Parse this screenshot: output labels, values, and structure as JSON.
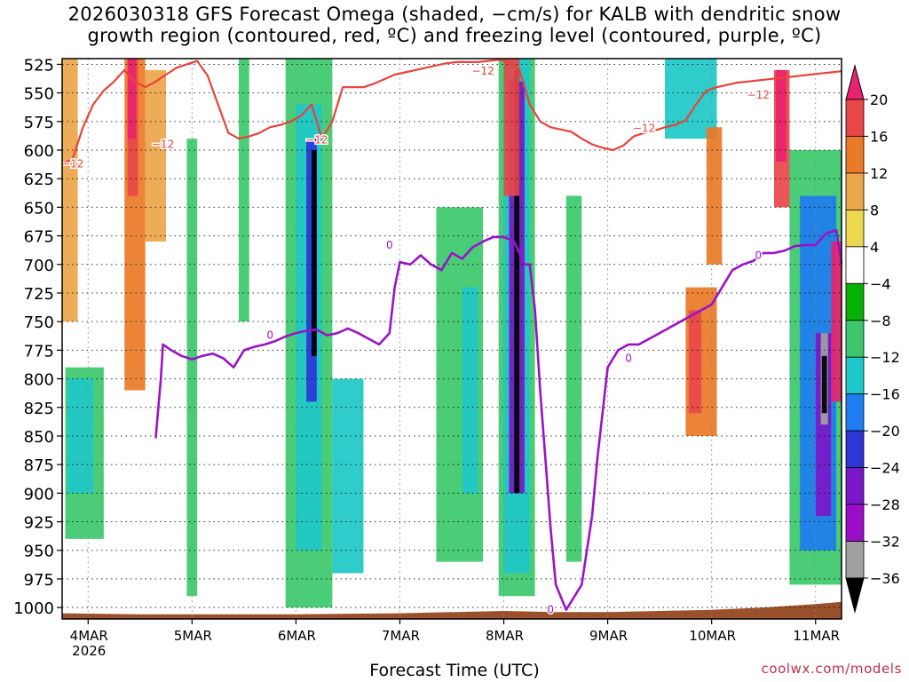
{
  "title": {
    "line1": "2026030318 GFS Forecast Omega (shaded, −cm/s) for KALB with dendritic snow",
    "line2": "growth region (contoured, red, ºC) and freezing level (contoured, purple, ºC)"
  },
  "xlabel": "Forecast Time (UTC)",
  "credit": "coolwx.com/models",
  "chart_data": {
    "type": "heatmap",
    "title": "2026030318 GFS Forecast Omega (shaded, −cm/s) for KALB with dendritic snow growth region (contoured, red, ºC) and freezing level (contoured, purple, ºC)",
    "xlabel": "Forecast Time (UTC)",
    "ylabel": "",
    "x_ticks": [
      {
        "x": 0.0,
        "label": "4MAR",
        "sub": "2026"
      },
      {
        "x": 1.0,
        "label": "5MAR"
      },
      {
        "x": 2.0,
        "label": "6MAR"
      },
      {
        "x": 3.0,
        "label": "7MAR"
      },
      {
        "x": 4.0,
        "label": "8MAR"
      },
      {
        "x": 5.0,
        "label": "9MAR"
      },
      {
        "x": 6.0,
        "label": "10MAR"
      },
      {
        "x": 7.0,
        "label": "11MAR"
      }
    ],
    "xlim": [
      -0.25,
      7.25
    ],
    "y_levels": [
      525,
      550,
      575,
      600,
      625,
      650,
      675,
      700,
      725,
      750,
      775,
      800,
      825,
      850,
      875,
      900,
      925,
      950,
      975,
      1000
    ],
    "ylim": [
      1010,
      520
    ],
    "grid": true,
    "colorbar": {
      "labels": [
        "20",
        "16",
        "12",
        "8",
        "4",
        "−4",
        "−8",
        "−12",
        "−16",
        "−20",
        "−24",
        "−28",
        "−32",
        "−36"
      ],
      "colors": [
        "#e8246e",
        "#e8474a",
        "#ea7a26",
        "#eba64a",
        "#ecd84e",
        "#ffffff",
        "#06b106",
        "#3cc86a",
        "#1ec8c8",
        "#1e7df0",
        "#2e36d6",
        "#7a18c8",
        "#9b0ec8",
        "#a0a0a0",
        "#000000"
      ]
    },
    "omega_bands": [
      {
        "x0": 0.35,
        "x1": 0.55,
        "p0": 520,
        "p1": 810,
        "value": 12
      },
      {
        "x0": 0.38,
        "x1": 0.48,
        "p0": 520,
        "p1": 640,
        "value": 16
      },
      {
        "x0": 0.38,
        "x1": 0.46,
        "p0": 520,
        "p1": 590,
        "value": 20
      },
      {
        "x0": -0.25,
        "x1": -0.1,
        "p0": 520,
        "p1": 750,
        "value": 8
      },
      {
        "x0": 0.55,
        "x1": 0.75,
        "p0": 530,
        "p1": 680,
        "value": 8
      },
      {
        "x0": -0.22,
        "x1": 0.15,
        "p0": 790,
        "p1": 940,
        "value": -8
      },
      {
        "x0": -0.2,
        "x1": 0.05,
        "p0": 800,
        "p1": 900,
        "value": -12
      },
      {
        "x0": 0.95,
        "x1": 1.05,
        "p0": 590,
        "p1": 990,
        "value": -8
      },
      {
        "x0": 1.45,
        "x1": 1.55,
        "p0": 520,
        "p1": 750,
        "value": -8
      },
      {
        "x0": 1.9,
        "x1": 2.35,
        "p0": 520,
        "p1": 1000,
        "value": -8
      },
      {
        "x0": 2.0,
        "x1": 2.25,
        "p0": 560,
        "p1": 950,
        "value": -12
      },
      {
        "x0": 2.1,
        "x1": 2.2,
        "p0": 590,
        "p1": 820,
        "value": -20
      },
      {
        "x0": 2.15,
        "x1": 2.2,
        "p0": 600,
        "p1": 780,
        "value": -36
      },
      {
        "x0": 2.35,
        "x1": 2.65,
        "p0": 800,
        "p1": 970,
        "value": -12
      },
      {
        "x0": 3.35,
        "x1": 3.8,
        "p0": 650,
        "p1": 960,
        "value": -8
      },
      {
        "x0": 3.6,
        "x1": 3.75,
        "p0": 720,
        "p1": 900,
        "value": -12
      },
      {
        "x0": 3.95,
        "x1": 4.3,
        "p0": 520,
        "p1": 990,
        "value": -8
      },
      {
        "x0": 4.0,
        "x1": 4.25,
        "p0": 520,
        "p1": 970,
        "value": -12
      },
      {
        "x0": 4.05,
        "x1": 4.2,
        "p0": 540,
        "p1": 900,
        "value": -24
      },
      {
        "x0": 4.1,
        "x1": 4.15,
        "p0": 530,
        "p1": 900,
        "value": -36
      },
      {
        "x0": 4.0,
        "x1": 4.15,
        "p0": 520,
        "p1": 640,
        "value": 16
      },
      {
        "x0": 4.6,
        "x1": 4.75,
        "p0": 640,
        "p1": 960,
        "value": -8
      },
      {
        "x0": 5.55,
        "x1": 6.05,
        "p0": 520,
        "p1": 590,
        "value": -12
      },
      {
        "x0": 5.75,
        "x1": 6.05,
        "p0": 720,
        "p1": 850,
        "value": 12
      },
      {
        "x0": 5.78,
        "x1": 5.9,
        "p0": 740,
        "p1": 830,
        "value": 16
      },
      {
        "x0": 5.95,
        "x1": 6.1,
        "p0": 580,
        "p1": 700,
        "value": 12
      },
      {
        "x0": 6.6,
        "x1": 6.75,
        "p0": 530,
        "p1": 650,
        "value": 16
      },
      {
        "x0": 6.62,
        "x1": 6.72,
        "p0": 530,
        "p1": 610,
        "value": 20
      },
      {
        "x0": 6.75,
        "x1": 7.25,
        "p0": 600,
        "p1": 980,
        "value": -8
      },
      {
        "x0": 6.85,
        "x1": 7.2,
        "p0": 640,
        "p1": 950,
        "value": -16
      },
      {
        "x0": 7.0,
        "x1": 7.15,
        "p0": 760,
        "p1": 920,
        "value": -24
      },
      {
        "x0": 7.05,
        "x1": 7.12,
        "p0": 760,
        "p1": 840,
        "value": -32
      },
      {
        "x0": 7.06,
        "x1": 7.11,
        "p0": 780,
        "p1": 830,
        "value": -36
      },
      {
        "x0": 7.15,
        "x1": 7.25,
        "p0": 680,
        "p1": 820,
        "value": 20
      }
    ],
    "terrain_pressure": [
      [
        -0.25,
        1005
      ],
      [
        0.5,
        1006
      ],
      [
        1.0,
        1006
      ],
      [
        2.0,
        1006
      ],
      [
        3.0,
        1005
      ],
      [
        4.0,
        1003
      ],
      [
        4.5,
        1004
      ],
      [
        5.0,
        1004
      ],
      [
        5.5,
        1003
      ],
      [
        6.0,
        1002
      ],
      [
        6.5,
        1000
      ],
      [
        7.0,
        997
      ],
      [
        7.25,
        995
      ]
    ],
    "minus12_contour": [
      [
        -0.25,
        612
      ],
      [
        -0.15,
        608
      ],
      [
        -0.05,
        580
      ],
      [
        0.05,
        560
      ],
      [
        0.15,
        548
      ],
      [
        0.25,
        540
      ],
      [
        0.35,
        530
      ],
      [
        0.45,
        540
      ],
      [
        0.55,
        545
      ],
      [
        0.65,
        540
      ],
      [
        0.75,
        534
      ],
      [
        0.85,
        528
      ],
      [
        0.95,
        525
      ],
      [
        1.05,
        522
      ],
      [
        1.15,
        535
      ],
      [
        1.25,
        560
      ],
      [
        1.35,
        585
      ],
      [
        1.45,
        590
      ],
      [
        1.55,
        588
      ],
      [
        1.65,
        585
      ],
      [
        1.75,
        580
      ],
      [
        1.85,
        578
      ],
      [
        1.95,
        575
      ],
      [
        2.05,
        570
      ],
      [
        2.15,
        560
      ],
      [
        2.25,
        590
      ],
      [
        2.35,
        575
      ],
      [
        2.45,
        545
      ],
      [
        2.55,
        545
      ],
      [
        2.65,
        545
      ],
      [
        2.75,
        542
      ],
      [
        2.85,
        538
      ],
      [
        2.95,
        534
      ],
      [
        3.05,
        532
      ],
      [
        3.15,
        530
      ],
      [
        3.25,
        528
      ],
      [
        3.35,
        526
      ],
      [
        3.45,
        524
      ],
      [
        3.55,
        523
      ],
      [
        3.65,
        523
      ],
      [
        3.75,
        523
      ],
      [
        3.85,
        522
      ],
      [
        3.95,
        521
      ],
      [
        4.05,
        523
      ],
      [
        4.15,
        530
      ],
      [
        4.25,
        560
      ],
      [
        4.35,
        575
      ],
      [
        4.45,
        580
      ],
      [
        4.55,
        582
      ],
      [
        4.65,
        584
      ],
      [
        4.75,
        590
      ],
      [
        4.85,
        595
      ],
      [
        4.95,
        598
      ],
      [
        5.05,
        600
      ],
      [
        5.15,
        596
      ],
      [
        5.25,
        588
      ],
      [
        5.35,
        585
      ],
      [
        5.45,
        583
      ],
      [
        5.55,
        580
      ],
      [
        5.65,
        578
      ],
      [
        5.75,
        574
      ],
      [
        5.85,
        560
      ],
      [
        5.95,
        548
      ],
      [
        6.05,
        545
      ],
      [
        6.15,
        543
      ],
      [
        6.25,
        541
      ],
      [
        6.35,
        540
      ],
      [
        6.45,
        539
      ],
      [
        6.55,
        538
      ],
      [
        6.65,
        537
      ],
      [
        6.75,
        536
      ],
      [
        6.85,
        535
      ],
      [
        6.95,
        534
      ],
      [
        7.05,
        533
      ],
      [
        7.15,
        532
      ],
      [
        7.25,
        531
      ]
    ],
    "minus12_labels": [
      {
        "x": -0.15,
        "p": 612,
        "text": "−12"
      },
      {
        "x": 0.72,
        "p": 595,
        "text": "−12"
      },
      {
        "x": 2.2,
        "p": 591,
        "text": "−12"
      },
      {
        "x": 3.8,
        "p": 531,
        "text": "−12"
      },
      {
        "x": 5.35,
        "p": 581,
        "text": "−12"
      },
      {
        "x": 6.45,
        "p": 552,
        "text": "−12"
      }
    ],
    "freezing_contour": [
      [
        0.65,
        852
      ],
      [
        0.7,
        800
      ],
      [
        0.72,
        770
      ],
      [
        0.8,
        775
      ],
      [
        0.9,
        780
      ],
      [
        1.0,
        783
      ],
      [
        1.1,
        780
      ],
      [
        1.2,
        778
      ],
      [
        1.3,
        782
      ],
      [
        1.4,
        790
      ],
      [
        1.5,
        775
      ],
      [
        1.6,
        772
      ],
      [
        1.7,
        770
      ],
      [
        1.8,
        767
      ],
      [
        1.9,
        763
      ],
      [
        2.0,
        760
      ],
      [
        2.1,
        758
      ],
      [
        2.2,
        757
      ],
      [
        2.3,
        762
      ],
      [
        2.4,
        760
      ],
      [
        2.5,
        756
      ],
      [
        2.6,
        760
      ],
      [
        2.7,
        765
      ],
      [
        2.8,
        770
      ],
      [
        2.9,
        760
      ],
      [
        2.95,
        720
      ],
      [
        3.0,
        698
      ],
      [
        3.1,
        700
      ],
      [
        3.2,
        692
      ],
      [
        3.3,
        700
      ],
      [
        3.4,
        705
      ],
      [
        3.5,
        690
      ],
      [
        3.6,
        695
      ],
      [
        3.7,
        685
      ],
      [
        3.8,
        680
      ],
      [
        3.9,
        676
      ],
      [
        4.0,
        676
      ],
      [
        4.1,
        680
      ],
      [
        4.2,
        700
      ],
      [
        4.25,
        700
      ],
      [
        4.3,
        740
      ],
      [
        4.35,
        810
      ],
      [
        4.4,
        870
      ],
      [
        4.45,
        930
      ],
      [
        4.5,
        980
      ],
      [
        4.6,
        1002
      ],
      [
        4.75,
        980
      ],
      [
        4.85,
        920
      ],
      [
        4.9,
        870
      ],
      [
        5.0,
        790
      ],
      [
        5.1,
        775
      ],
      [
        5.2,
        770
      ],
      [
        5.3,
        770
      ],
      [
        5.4,
        765
      ],
      [
        5.5,
        760
      ],
      [
        5.6,
        755
      ],
      [
        5.7,
        750
      ],
      [
        5.8,
        745
      ],
      [
        5.9,
        740
      ],
      [
        6.0,
        735
      ],
      [
        6.1,
        720
      ],
      [
        6.2,
        705
      ],
      [
        6.3,
        700
      ],
      [
        6.4,
        697
      ],
      [
        6.5,
        690
      ],
      [
        6.6,
        690
      ],
      [
        6.7,
        688
      ],
      [
        6.8,
        684
      ],
      [
        6.9,
        683
      ],
      [
        7.0,
        683
      ],
      [
        7.1,
        673
      ],
      [
        7.2,
        670
      ],
      [
        7.25,
        700
      ]
    ],
    "freezing_labels": [
      {
        "x": 1.75,
        "p": 762,
        "text": "0"
      },
      {
        "x": 2.9,
        "p": 683,
        "text": "0"
      },
      {
        "x": 4.45,
        "p": 1002,
        "text": "0"
      },
      {
        "x": 5.2,
        "p": 782,
        "text": "0"
      },
      {
        "x": 6.45,
        "p": 692,
        "text": "0"
      }
    ]
  }
}
